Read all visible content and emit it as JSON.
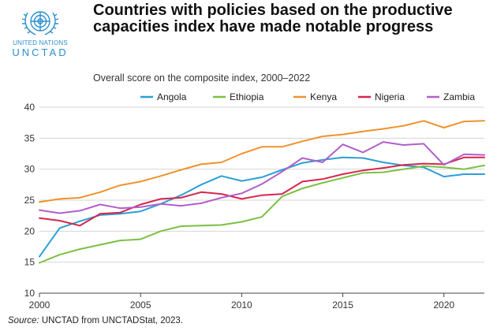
{
  "header": {
    "title": "Countries with policies based on the productive capacities index have made notable progress",
    "subtitle": "Overall score on the composite index, 2000–2022",
    "logo_line1": "UNITED NATIONS",
    "logo_line2": "UNCTAD"
  },
  "footer": {
    "source_label": "Source:",
    "source_text": " UNCTAD from UNCTADStat, 2023."
  },
  "colors": {
    "Angola": "#2b9fd6",
    "Ethiopia": "#7bc043",
    "Kenya": "#f0922e",
    "Nigeria": "#d6264f",
    "Zambia": "#b05fc9",
    "logo": "#2a8fd0"
  },
  "chart_data": {
    "type": "line",
    "title": "Countries with policies based on the productive capacities index have made notable progress",
    "subtitle": "Overall score on the composite index, 2000–2022",
    "xlabel": "",
    "ylabel": "",
    "x": [
      2000,
      2001,
      2002,
      2003,
      2004,
      2005,
      2006,
      2007,
      2008,
      2009,
      2010,
      2011,
      2012,
      2013,
      2014,
      2015,
      2016,
      2017,
      2018,
      2019,
      2020,
      2021,
      2022
    ],
    "xlim": [
      2000,
      2022
    ],
    "ylim": [
      10,
      40
    ],
    "xticks": [
      2000,
      2005,
      2010,
      2015,
      2020
    ],
    "yticks": [
      10,
      15,
      20,
      25,
      30,
      35,
      40
    ],
    "grid": true,
    "legend": "top",
    "series": [
      {
        "name": "Angola",
        "values": [
          15.9,
          20.5,
          21.6,
          22.6,
          22.8,
          23.2,
          24.4,
          25.8,
          27.5,
          28.9,
          28.1,
          28.7,
          29.9,
          31.0,
          31.5,
          31.9,
          31.8,
          31.1,
          30.6,
          30.3,
          28.8,
          29.2,
          29.2
        ]
      },
      {
        "name": "Ethiopia",
        "values": [
          14.9,
          16.2,
          17.1,
          17.8,
          18.5,
          18.7,
          20.0,
          20.8,
          20.9,
          21.0,
          21.5,
          22.3,
          25.6,
          26.9,
          27.8,
          28.6,
          29.4,
          29.5,
          30.0,
          30.5,
          30.3,
          30.0,
          30.6
        ]
      },
      {
        "name": "Kenya",
        "values": [
          24.7,
          25.2,
          25.4,
          26.3,
          27.4,
          28.0,
          28.9,
          29.9,
          30.8,
          31.1,
          32.5,
          33.6,
          33.6,
          34.5,
          35.3,
          35.6,
          36.1,
          36.5,
          37.0,
          37.8,
          36.7,
          37.7,
          37.8
        ]
      },
      {
        "name": "Nigeria",
        "values": [
          22.1,
          21.7,
          20.9,
          22.8,
          23.0,
          24.3,
          25.2,
          25.4,
          26.3,
          26.0,
          25.2,
          25.8,
          26.0,
          28.0,
          28.4,
          29.2,
          29.8,
          30.2,
          30.7,
          30.9,
          30.8,
          31.9,
          31.9
        ]
      },
      {
        "name": "Zambia",
        "values": [
          23.4,
          22.9,
          23.3,
          24.3,
          23.7,
          23.9,
          24.4,
          24.1,
          24.5,
          25.4,
          26.1,
          27.6,
          29.6,
          31.8,
          31.1,
          34.0,
          32.7,
          34.4,
          33.9,
          34.1,
          30.7,
          32.4,
          32.3
        ]
      }
    ]
  }
}
